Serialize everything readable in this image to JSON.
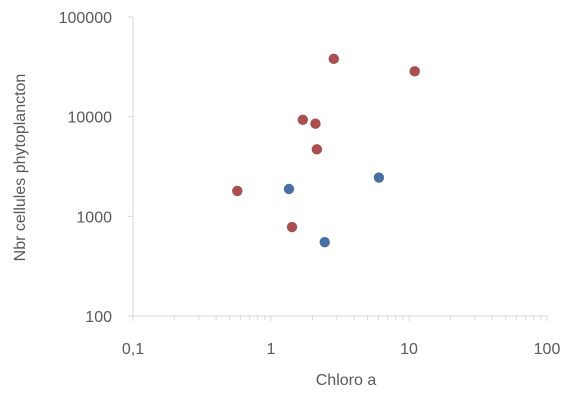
{
  "chart_data": {
    "type": "scatter",
    "xscale": "log",
    "yscale": "log",
    "xlim": [
      0.1,
      100
    ],
    "ylim": [
      100,
      100000
    ],
    "xticks": [
      "0,1",
      "1",
      "10",
      "100"
    ],
    "yticks": [
      "100",
      "1000",
      "10000",
      "100000"
    ],
    "xlabel": "Chloro a",
    "ylabel": "Nbr cellules phytoplancton",
    "grid": false,
    "legend": "none",
    "series": [
      {
        "color": "#a94f4f",
        "points": [
          {
            "x": 0.57,
            "y": 1800
          },
          {
            "x": 1.42,
            "y": 780
          },
          {
            "x": 1.7,
            "y": 9300
          },
          {
            "x": 2.1,
            "y": 8500
          },
          {
            "x": 2.15,
            "y": 4700
          },
          {
            "x": 2.85,
            "y": 38000
          },
          {
            "x": 11.0,
            "y": 28500
          }
        ]
      },
      {
        "color": "#4a6fa5",
        "points": [
          {
            "x": 1.35,
            "y": 1880
          },
          {
            "x": 2.45,
            "y": 550
          },
          {
            "x": 6.05,
            "y": 2450
          }
        ]
      }
    ]
  }
}
